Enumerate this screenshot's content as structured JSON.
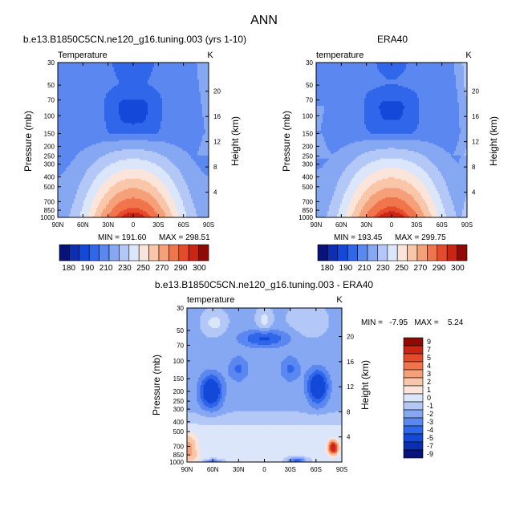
{
  "figure_title": "ANN",
  "colors": {
    "lev_abs": [
      "#07127a",
      "#0b2fb0",
      "#1448d8",
      "#2f66ea",
      "#5b87f0",
      "#86a8f3",
      "#b4c8f7",
      "#dbe6fb",
      "#fbe5da",
      "#f9c6aa",
      "#f6a07a",
      "#f0754d",
      "#e54a2a",
      "#c92414",
      "#8f0a04"
    ],
    "lev_diff": [
      "#07127a",
      "#0b2fb0",
      "#1448d8",
      "#2f66ea",
      "#5b87f0",
      "#86a8f3",
      "#b4c8f7",
      "#dbe6fb",
      "#fbe5da",
      "#f9c6aa",
      "#f6a07a",
      "#f0754d",
      "#e54a2a",
      "#c92414",
      "#8f0a04"
    ]
  },
  "chart_data": [
    {
      "id": "model",
      "type": "contour",
      "title": "b.e13.B1850C5CN.ne120_g16.tuning.003 (yrs 1-10)",
      "left_label": "Temperature",
      "units": "K",
      "ylabel": "Pressure (mb)",
      "ylabel_right": "Height (km)",
      "x_ticks": [
        "90N",
        "60N",
        "30N",
        "0",
        "30S",
        "60S",
        "90S"
      ],
      "y_ticks": [
        "30",
        "50",
        "70",
        "100",
        "150",
        "200",
        "250",
        "300",
        "400",
        "500",
        "700",
        "850",
        "1000"
      ],
      "height_ticks": [
        "4",
        "8",
        "12",
        "16",
        "20"
      ],
      "min_label": "MIN = 191.60",
      "max_label": "MAX = 298.51",
      "colorbar": {
        "orientation": "horizontal",
        "labels": [
          "180",
          "190",
          "210",
          "230",
          "250",
          "270",
          "290",
          "300"
        ]
      },
      "field": "model"
    },
    {
      "id": "obs",
      "type": "contour",
      "title": "ERA40",
      "left_label": "temperature",
      "units": "K",
      "ylabel": "Pressure (mb)",
      "ylabel_right": "Height (km)",
      "x_ticks": [
        "90N",
        "60N",
        "30N",
        "0",
        "30S",
        "60S",
        "90S"
      ],
      "y_ticks": [
        "30",
        "50",
        "70",
        "100",
        "150",
        "200",
        "250",
        "300",
        "400",
        "500",
        "700",
        "850",
        "1000"
      ],
      "height_ticks": [
        "4",
        "8",
        "12",
        "16",
        "20"
      ],
      "min_label": "MIN = 193.45",
      "max_label": "MAX = 299.75",
      "colorbar": {
        "orientation": "horizontal",
        "labels": [
          "180",
          "190",
          "210",
          "230",
          "250",
          "270",
          "290",
          "300"
        ]
      },
      "field": "obs"
    },
    {
      "id": "diff",
      "type": "contour",
      "title": "b.e13.B1850C5CN.ne120_g16.tuning.003 - ERA40",
      "left_label": "temperature",
      "units": "K",
      "ylabel": "Pressure (mb)",
      "ylabel_right": "Height (km)",
      "x_ticks": [
        "90N",
        "60N",
        "30N",
        "0",
        "30S",
        "60S",
        "90S"
      ],
      "y_ticks": [
        "30",
        "50",
        "70",
        "100",
        "150",
        "200",
        "250",
        "300",
        "400",
        "500",
        "700",
        "850",
        "1000"
      ],
      "height_ticks": [
        "4",
        "8",
        "12",
        "16",
        "20"
      ],
      "minmax_label": "MIN =   -7.95   MAX =    5.24",
      "colorbar": {
        "orientation": "vertical",
        "labels": [
          "9",
          "7",
          "5",
          "4",
          "3",
          "2",
          "1",
          "0",
          "-1",
          "-2",
          "-3",
          "-4",
          "-5",
          "-7",
          "-9"
        ]
      },
      "field": "diff"
    }
  ]
}
